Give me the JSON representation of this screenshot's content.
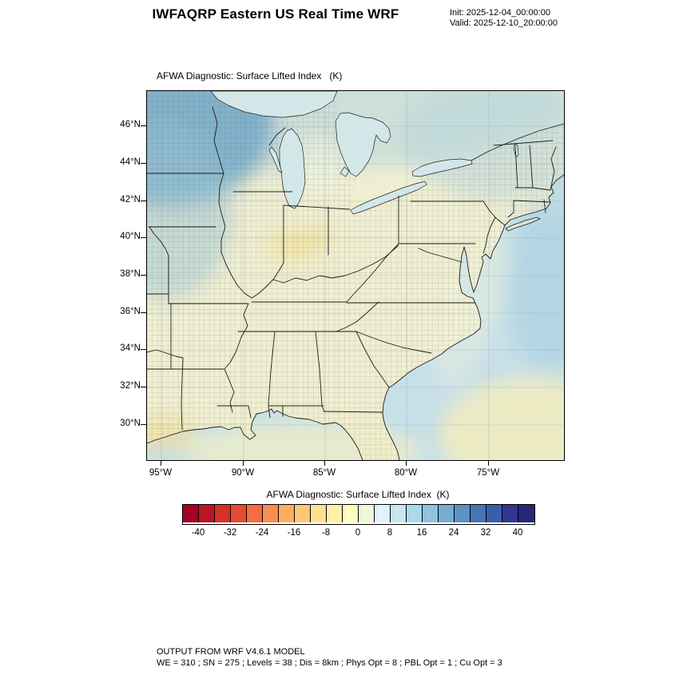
{
  "header": {
    "title": "IWFAQRP Eastern US Real Time WRF",
    "init_label": "Init: 2025-12-04_00:00:00",
    "valid_label": "Valid: 2025-12-10_20:00:00"
  },
  "map": {
    "title": "AFWA Diagnostic: Surface Lifted Index   (K)",
    "lat_ticks": [
      "46°N",
      "44°N",
      "42°N",
      "40°N",
      "38°N",
      "36°N",
      "34°N",
      "32°N",
      "30°N"
    ],
    "lon_ticks": [
      "95°W",
      "90°W",
      "85°W",
      "80°W",
      "75°W"
    ]
  },
  "colorbar": {
    "title": "AFWA Diagnostic: Surface Lifted Index  (K)",
    "tick_labels": [
      "-40",
      "-32",
      "-24",
      "-16",
      "-8",
      "0",
      "8",
      "16",
      "24",
      "32",
      "40"
    ],
    "colors": [
      "#a50026",
      "#bb1526",
      "#d73027",
      "#e44d33",
      "#f46d43",
      "#f88e53",
      "#fdae61",
      "#fec877",
      "#fee090",
      "#feefa9",
      "#fdfdc0",
      "#f0f8da",
      "#e0f3f8",
      "#c7e6ee",
      "#abd9e9",
      "#90c3dd",
      "#74add1",
      "#5b93c4",
      "#4575b4",
      "#3b5eab",
      "#313695",
      "#272778"
    ]
  },
  "footer": {
    "line1": "OUTPUT FROM WRF V4.6.1 MODEL",
    "line2": "WE = 310 ; SN = 275 ; Levels = 38 ; Dis = 8km ; Phys Opt = 8 ; PBL Opt = 1 ; Cu Opt = 3"
  },
  "chart_data": {
    "type": "heatmap",
    "title": "AFWA Diagnostic: Surface Lifted Index (K)",
    "units": "K",
    "region": "Eastern United States",
    "x_axis": {
      "label": "longitude",
      "ticks": [
        "95°W",
        "90°W",
        "85°W",
        "80°W",
        "75°W"
      ],
      "range": [
        "96°W",
        "70.5°W"
      ]
    },
    "y_axis": {
      "label": "latitude",
      "ticks": [
        "46°N",
        "44°N",
        "42°N",
        "40°N",
        "38°N",
        "36°N",
        "34°N",
        "32°N",
        "30°N"
      ],
      "range": [
        "28°N",
        "48°N"
      ]
    },
    "colorbar": {
      "position": "bottom",
      "ticks": [
        -40,
        -32,
        -24,
        -16,
        -8,
        0,
        8,
        16,
        24,
        32,
        40
      ],
      "cell_step": 4,
      "range": [
        -44,
        44
      ]
    },
    "field_regions": [
      {
        "region": "Minnesota / Iowa northwest corner",
        "approx_value_K": "16 to 24"
      },
      {
        "region": "Upper Midwest, Great Lakes, New England land",
        "approx_value_K": "8 to 16"
      },
      {
        "region": "Ohio Valley and Southeast US land",
        "approx_value_K": "0 to 8"
      },
      {
        "region": "Central Indiana / Ohio local pale-yellow minima",
        "approx_value_K": "-4 to 4"
      },
      {
        "region": "Atlantic Ocean offshore",
        "approx_value_K": "8 to 16"
      },
      {
        "region": "Far southeast offshore corner and Gulf coast waters",
        "approx_value_K": "0 to 8"
      }
    ]
  }
}
